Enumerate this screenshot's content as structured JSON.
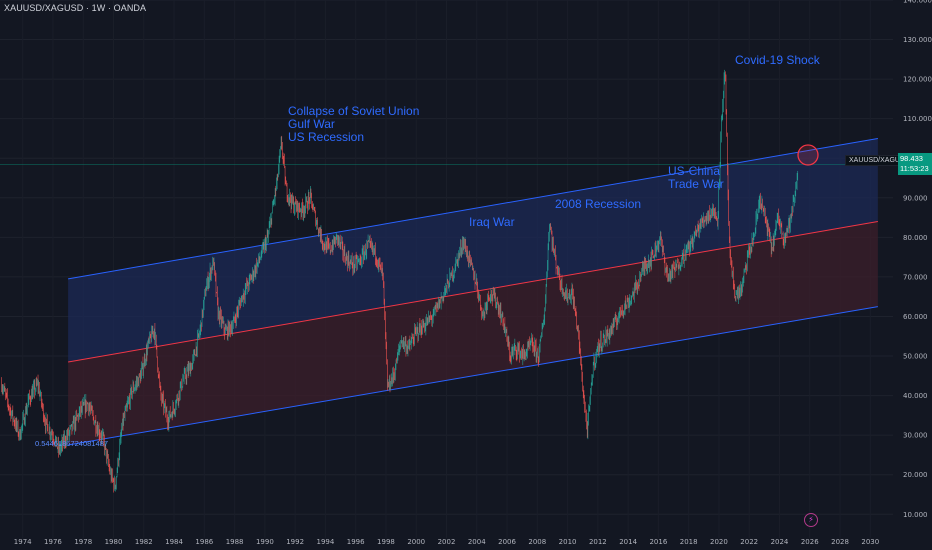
{
  "header": {
    "title": "XAUUSD/XAGUSD · 1W · OANDA"
  },
  "price_badge": {
    "symbol": "XAUUSD/XAGUSD",
    "value": "98.433",
    "timer": "11:53:23"
  },
  "fib_label": "0.5446186724081487",
  "annotations": [
    {
      "id": "soviet",
      "lines": [
        "Collapse of Soviet Union",
        "Gulf War",
        "US Recession"
      ]
    },
    {
      "id": "iraq",
      "lines": [
        "Iraq War"
      ]
    },
    {
      "id": "recession2008",
      "lines": [
        "2008 Recession"
      ]
    },
    {
      "id": "uschina",
      "lines": [
        "US-China",
        "Trade War"
      ]
    },
    {
      "id": "covid",
      "lines": [
        "Covid-19 Shock"
      ]
    }
  ],
  "icons": {
    "alert": "lightning-bolt-icon"
  },
  "colors": {
    "background": "#131722",
    "up_candle": "#26a69a",
    "down_candle": "#ef5350",
    "channel_line": "#2962ff",
    "mid_line": "#f23645",
    "upper_fill": "#1c2a55",
    "lower_fill": "#3a1e2a",
    "annotation": "#2f6bff",
    "price_line": "#089981"
  },
  "chart_data": {
    "type": "candlestick",
    "symbol": "XAUUSD/XAGUSD",
    "interval": "1W",
    "source": "OANDA",
    "y_axis": {
      "side": "right",
      "range": [
        4,
        140
      ],
      "ticks": [
        "10.000",
        "20.000",
        "30.000",
        "40.000",
        "50.000",
        "60.000",
        "70.000",
        "80.000",
        "90.000",
        "100.000",
        "110.000",
        "120.000",
        "130.000",
        "140.000"
      ]
    },
    "x_axis": {
      "range": [
        1972.5,
        2031.5
      ],
      "ticks": [
        "1974",
        "1976",
        "1978",
        "1980",
        "1982",
        "1984",
        "1986",
        "1988",
        "1990",
        "1992",
        "1994",
        "1996",
        "1998",
        "2000",
        "2002",
        "2004",
        "2006",
        "2008",
        "2010",
        "2012",
        "2014",
        "2016",
        "2018",
        "2020",
        "2022",
        "2024",
        "2026",
        "2028",
        "2030"
      ]
    },
    "last_price": 98.433,
    "channel": {
      "upper": {
        "start": [
          1977.0,
          69.5
        ],
        "end": [
          2030.5,
          105
        ]
      },
      "middle": {
        "start": [
          1977.0,
          48.5
        ],
        "end": [
          2030.5,
          84
        ]
      },
      "lower": {
        "start": [
          1977.0,
          27.5
        ],
        "end": [
          2030.5,
          62.5
        ]
      }
    },
    "price_path": [
      [
        1972.6,
        43
      ],
      [
        1973.2,
        36
      ],
      [
        1973.8,
        30
      ],
      [
        1974.4,
        39
      ],
      [
        1975.0,
        43
      ],
      [
        1975.5,
        33
      ],
      [
        1976.0,
        30
      ],
      [
        1976.4,
        26
      ],
      [
        1976.8,
        29
      ],
      [
        1977.3,
        32
      ],
      [
        1977.8,
        36
      ],
      [
        1978.3,
        38
      ],
      [
        1978.8,
        33
      ],
      [
        1979.3,
        29
      ],
      [
        1979.8,
        20
      ],
      [
        1980.1,
        17
      ],
      [
        1980.6,
        33
      ],
      [
        1981.2,
        41
      ],
      [
        1981.8,
        45
      ],
      [
        1982.3,
        53
      ],
      [
        1982.7,
        57
      ],
      [
        1983.1,
        40
      ],
      [
        1983.6,
        34
      ],
      [
        1984.0,
        37
      ],
      [
        1984.6,
        44
      ],
      [
        1985.2,
        48
      ],
      [
        1985.7,
        56
      ],
      [
        1986.1,
        67
      ],
      [
        1986.6,
        74
      ],
      [
        1986.9,
        61
      ],
      [
        1987.4,
        56
      ],
      [
        1987.9,
        58
      ],
      [
        1988.5,
        65
      ],
      [
        1989.0,
        69
      ],
      [
        1989.6,
        74
      ],
      [
        1990.2,
        80
      ],
      [
        1990.8,
        94
      ],
      [
        1991.1,
        104
      ],
      [
        1991.4,
        92
      ],
      [
        1991.9,
        88
      ],
      [
        1992.5,
        87
      ],
      [
        1993.0,
        90
      ],
      [
        1993.4,
        84
      ],
      [
        1993.9,
        78
      ],
      [
        1994.3,
        77
      ],
      [
        1994.8,
        80
      ],
      [
        1995.3,
        75
      ],
      [
        1995.8,
        73
      ],
      [
        1996.3,
        74
      ],
      [
        1996.8,
        78
      ],
      [
        1997.3,
        76
      ],
      [
        1997.8,
        70
      ],
      [
        1998.1,
        42
      ],
      [
        1998.5,
        45
      ],
      [
        1999.0,
        54
      ],
      [
        1999.5,
        52
      ],
      [
        2000.0,
        56
      ],
      [
        2000.6,
        58
      ],
      [
        2001.1,
        60
      ],
      [
        2001.6,
        64
      ],
      [
        2002.2,
        69
      ],
      [
        2002.6,
        73
      ],
      [
        2003.1,
        79
      ],
      [
        2003.6,
        73
      ],
      [
        2004.0,
        68
      ],
      [
        2004.4,
        60
      ],
      [
        2004.8,
        66
      ],
      [
        2005.3,
        64
      ],
      [
        2005.8,
        58
      ],
      [
        2006.2,
        50
      ],
      [
        2006.6,
        52
      ],
      [
        2007.1,
        50
      ],
      [
        2007.6,
        53
      ],
      [
        2008.1,
        50
      ],
      [
        2008.5,
        62
      ],
      [
        2008.8,
        84
      ],
      [
        2009.1,
        76
      ],
      [
        2009.5,
        69
      ],
      [
        2009.9,
        65
      ],
      [
        2010.3,
        66
      ],
      [
        2010.7,
        56
      ],
      [
        2011.0,
        42
      ],
      [
        2011.3,
        31
      ],
      [
        2011.7,
        48
      ],
      [
        2012.1,
        53
      ],
      [
        2012.6,
        55
      ],
      [
        2013.1,
        58
      ],
      [
        2013.6,
        62
      ],
      [
        2014.1,
        64
      ],
      [
        2014.6,
        68
      ],
      [
        2015.1,
        73
      ],
      [
        2015.6,
        75
      ],
      [
        2016.1,
        80
      ],
      [
        2016.6,
        70
      ],
      [
        2017.1,
        72
      ],
      [
        2017.6,
        75
      ],
      [
        2018.1,
        78
      ],
      [
        2018.6,
        82
      ],
      [
        2019.1,
        85
      ],
      [
        2019.6,
        87
      ],
      [
        2019.9,
        84
      ],
      [
        2020.2,
        112
      ],
      [
        2020.4,
        122
      ],
      [
        2020.7,
        75
      ],
      [
        2021.1,
        65
      ],
      [
        2021.5,
        67
      ],
      [
        2021.9,
        75
      ],
      [
        2022.3,
        80
      ],
      [
        2022.7,
        90
      ],
      [
        2023.1,
        84
      ],
      [
        2023.5,
        77
      ],
      [
        2023.9,
        85
      ],
      [
        2024.3,
        80
      ],
      [
        2024.7,
        84
      ],
      [
        2025.0,
        90
      ],
      [
        2025.25,
        98
      ]
    ]
  }
}
